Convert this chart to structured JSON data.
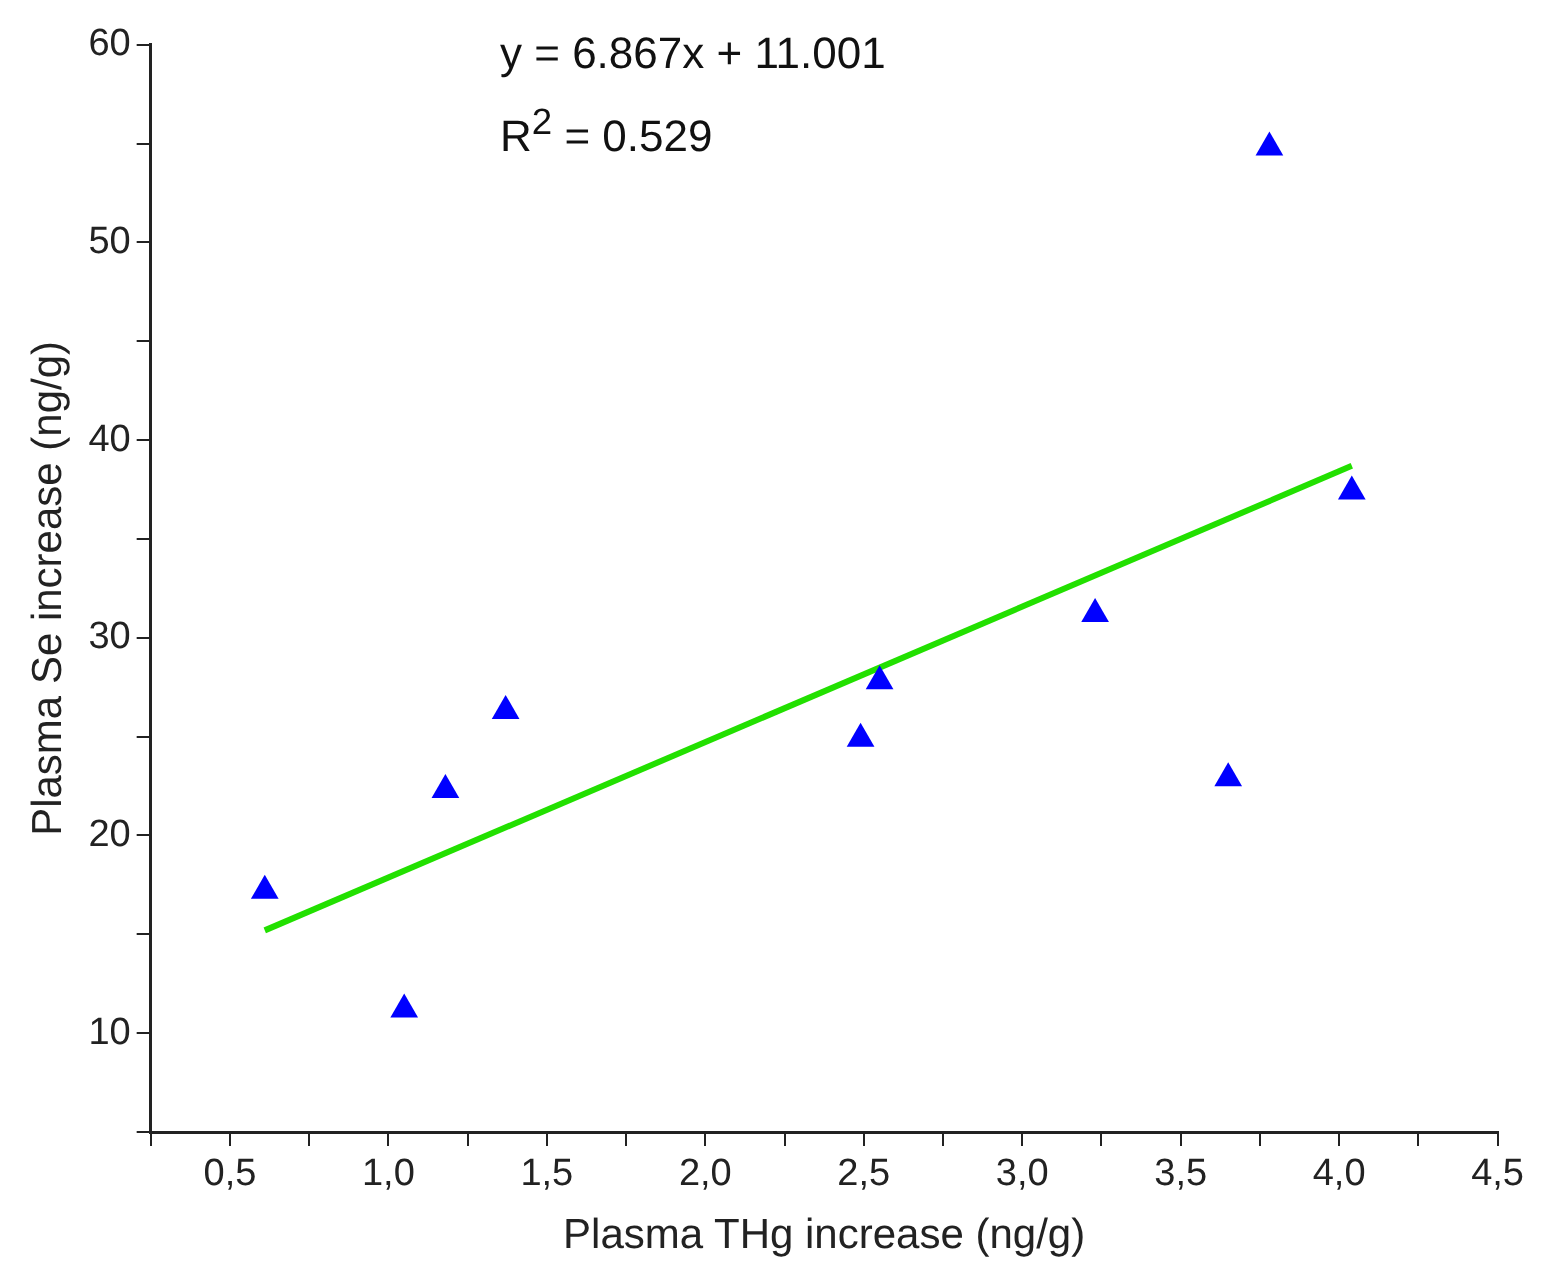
{
  "chart_data": {
    "type": "scatter",
    "xlabel": "Plasma THg increase (ng/g)",
    "ylabel": "Plasma Se increase (ng/g)",
    "annotations": [
      "y = 6.867x + 11.001",
      "R$^{2}$ = 0.529"
    ],
    "x": [
      0.61,
      1.05,
      1.18,
      1.37,
      2.49,
      2.55,
      3.23,
      3.65,
      3.78,
      4.04
    ],
    "series": [
      {
        "type": "scatter",
        "color": "#0000ff",
        "marker": "triangle",
        "values": [
          17.2,
          11.2,
          22.3,
          26.3,
          24.9,
          27.8,
          31.2,
          22.9,
          54.8,
          37.4
        ]
      },
      {
        "type": "line",
        "color": "#22e000",
        "marker": "none",
        "x": [
          0.61,
          4.04
        ],
        "values": [
          15.2,
          38.7
        ]
      }
    ],
    "xlim": [
      0.25,
      4.5
    ],
    "xticks": [
      {
        "value": 0.25,
        "label": null
      },
      {
        "value": 0.5,
        "label": "0,5"
      },
      {
        "value": 0.75,
        "label": null
      },
      {
        "value": 1,
        "label": "1,0"
      },
      {
        "value": 1.25,
        "label": null
      },
      {
        "value": 1.5,
        "label": "1,5"
      },
      {
        "value": 1.75,
        "label": null
      },
      {
        "value": 2,
        "label": "2,0"
      },
      {
        "value": 2.25,
        "label": null
      },
      {
        "value": 2.5,
        "label": "2,5"
      },
      {
        "value": 2.75,
        "label": null
      },
      {
        "value": 3,
        "label": "3,0"
      },
      {
        "value": 3.25,
        "label": null
      },
      {
        "value": 3.5,
        "label": "3,5"
      },
      {
        "value": 3.75,
        "label": null
      },
      {
        "value": 4,
        "label": "4,0"
      },
      {
        "value": 4.25,
        "label": null
      },
      {
        "value": 4.5,
        "label": "4,5"
      }
    ],
    "ylim": [
      5,
      60
    ],
    "yticks": [
      {
        "value": 5,
        "label": null
      },
      10,
      {
        "value": 15,
        "label": null
      },
      20,
      {
        "value": 25,
        "label": null
      },
      30,
      {
        "value": 35,
        "label": null
      },
      40,
      {
        "value": 45,
        "label": null
      },
      50,
      {
        "value": 55,
        "label": null
      },
      60
    ],
    "grid": false,
    "legend": false
  }
}
